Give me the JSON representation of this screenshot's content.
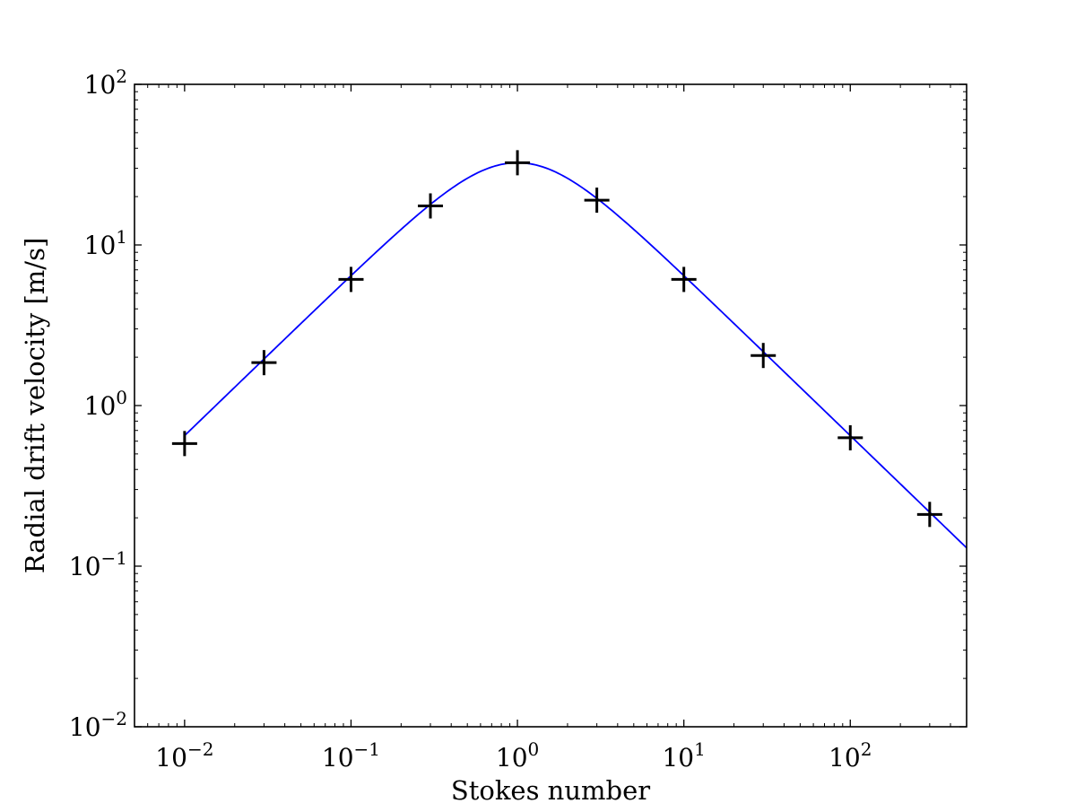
{
  "chart_data": {
    "type": "line",
    "title": "",
    "xlabel": "Stokes number",
    "ylabel": "Radial drift velocity [m/s]",
    "xscale": "log",
    "yscale": "log",
    "xlim": [
      0.005,
      500
    ],
    "ylim": [
      0.01,
      100
    ],
    "grid": false,
    "x_ticks": [
      {
        "value": 0.01,
        "base": "10",
        "exp": "−2"
      },
      {
        "value": 0.1,
        "base": "10",
        "exp": "−1"
      },
      {
        "value": 1,
        "base": "10",
        "exp": "0"
      },
      {
        "value": 10,
        "base": "10",
        "exp": "1"
      },
      {
        "value": 100,
        "base": "10",
        "exp": "2"
      }
    ],
    "y_ticks": [
      {
        "value": 0.01,
        "base": "10",
        "exp": "−2"
      },
      {
        "value": 0.1,
        "base": "10",
        "exp": "−1"
      },
      {
        "value": 1,
        "base": "10",
        "exp": "0"
      },
      {
        "value": 10,
        "base": "10",
        "exp": "1"
      },
      {
        "value": 100,
        "base": "10",
        "exp": "2"
      }
    ],
    "series": [
      {
        "kind": "line",
        "color": "#0000ff",
        "function": "2*vmax*St/(1+St^2)",
        "vmax": 32.5,
        "x_range": [
          0.01,
          500
        ]
      },
      {
        "kind": "markers",
        "marker": "+",
        "color": "#000000",
        "x": [
          0.01,
          0.03,
          0.1,
          0.3,
          1,
          3,
          10,
          30,
          100,
          300
        ],
        "y": [
          0.58,
          1.85,
          6.1,
          17.5,
          32.5,
          19.0,
          6.1,
          2.05,
          0.63,
          0.21
        ]
      }
    ]
  }
}
